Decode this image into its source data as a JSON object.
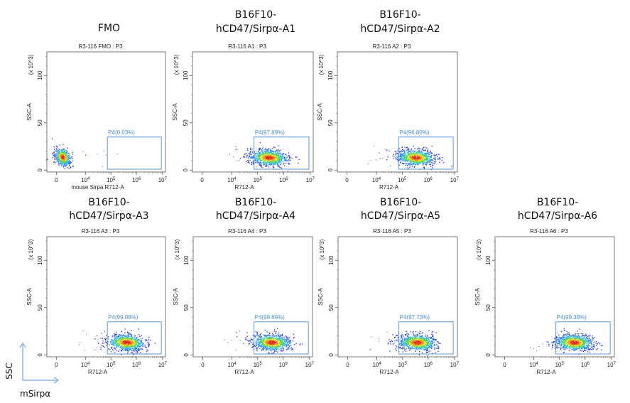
{
  "figure": {
    "corner_y_label": "SSC",
    "corner_x_label": "mSirpα",
    "gate_color": "#4a8fd8"
  },
  "chart_data": [
    {
      "type": "scatter",
      "title_lines": [
        "FMO"
      ],
      "subtitle": "R3-116 FMO : P3",
      "xlabel": "mouse Sirpa R712-A",
      "ylabel": "SSC-A",
      "y_scale_label": "(x 10^3)",
      "x_scale": "biexponential",
      "xticks": [
        "0",
        "10^4",
        "10^5",
        "10^6",
        "10^7"
      ],
      "yticks": [
        0,
        50,
        100
      ],
      "ylim": [
        -2,
        125
      ],
      "gate": {
        "name": "P4",
        "percent": "0.03%",
        "label": "P4(0.03%)",
        "x_range": [
          "7x10^4",
          "7x10^6"
        ],
        "y_range": [
          2,
          35
        ]
      },
      "population_center": {
        "x": "~1x10^3",
        "y": 14
      }
    },
    {
      "type": "scatter",
      "title_lines": [
        "B16F10-",
        "hCD47/Sirpα-A1"
      ],
      "subtitle": "R3-116 A1 : P3",
      "xlabel": "R712-A",
      "ylabel": "SSC-A",
      "y_scale_label": "(x 10^3)",
      "x_scale": "biexponential",
      "xticks": [
        "0",
        "10^4",
        "10^5",
        "10^6",
        "10^7"
      ],
      "yticks": [
        0,
        50,
        100
      ],
      "ylim": [
        -2,
        125
      ],
      "gate": {
        "name": "P4",
        "percent": "97.89%",
        "label": "P4(97.89%)",
        "x_range": [
          "7x10^4",
          "7x10^6"
        ],
        "y_range": [
          2,
          35
        ]
      },
      "population_center": {
        "x": "~2.5x10^5",
        "y": 14
      }
    },
    {
      "type": "scatter",
      "title_lines": [
        "B16F10-",
        "hCD47/Sirpα-A2"
      ],
      "subtitle": "R3-116 A2 : P3",
      "xlabel": "R712-A",
      "ylabel": "SSC-A",
      "y_scale_label": "(x 10^3)",
      "x_scale": "biexponential",
      "xticks": [
        "0",
        "10^4",
        "10^5",
        "10^6",
        "10^7"
      ],
      "yticks": [
        0,
        50,
        100
      ],
      "ylim": [
        -2,
        125
      ],
      "gate": {
        "name": "P4",
        "percent": "96.80%",
        "label": "P4(96.80%)",
        "x_range": [
          "7x10^4",
          "7x10^6"
        ],
        "y_range": [
          2,
          35
        ]
      },
      "population_center": {
        "x": "~3x10^5",
        "y": 15
      }
    },
    {
      "type": "scatter",
      "title_lines": [
        "B16F10-",
        "hCD47/Sirpα-A3"
      ],
      "subtitle": "R3-116 A3 : P3",
      "xlabel": "R712-A",
      "ylabel": "SSC-A",
      "y_scale_label": "(x 10^3)",
      "x_scale": "biexponential",
      "xticks": [
        "0",
        "10^4",
        "10^5",
        "10^6",
        "10^7"
      ],
      "yticks": [
        0,
        50,
        100
      ],
      "ylim": [
        -2,
        125
      ],
      "gate": {
        "name": "P4",
        "percent": "99.08%",
        "label": "P4(99.08%)",
        "x_range": [
          "7x10^4",
          "7x10^6"
        ],
        "y_range": [
          2,
          35
        ]
      },
      "population_center": {
        "x": "~4x10^5",
        "y": 13
      }
    },
    {
      "type": "scatter",
      "title_lines": [
        "B16F10-",
        "hCD47/Sirpα-A4"
      ],
      "subtitle": "R3-116 A4 : P3",
      "xlabel": "R712-A",
      "ylabel": "SSC-A",
      "y_scale_label": "(x 10^3)",
      "x_scale": "biexponential",
      "xticks": [
        "0",
        "10^4",
        "10^5",
        "10^6",
        "10^7"
      ],
      "yticks": [
        0,
        50,
        100
      ],
      "ylim": [
        -2,
        125
      ],
      "gate": {
        "name": "P4",
        "percent": "99.69%",
        "label": "P4(99.69%)",
        "x_range": [
          "7x10^4",
          "7x10^6"
        ],
        "y_range": [
          2,
          35
        ]
      },
      "population_center": {
        "x": "~3.5x10^5",
        "y": 13
      }
    },
    {
      "type": "scatter",
      "title_lines": [
        "B16F10-",
        "hCD47/Sirpα-A5"
      ],
      "subtitle": "R3-116 A5 : P3",
      "xlabel": "R712-A",
      "ylabel": "SSC-A",
      "y_scale_label": "(x 10^3)",
      "x_scale": "biexponential",
      "xticks": [
        "0",
        "10^4",
        "10^5",
        "10^6",
        "10^7"
      ],
      "yticks": [
        0,
        50,
        100
      ],
      "ylim": [
        -2,
        125
      ],
      "gate": {
        "name": "P4",
        "percent": "97.73%",
        "label": "P4(97.73%)",
        "x_range": [
          "7x10^4",
          "7x10^6"
        ],
        "y_range": [
          2,
          35
        ]
      },
      "population_center": {
        "x": "~3x10^5",
        "y": 13
      }
    },
    {
      "type": "scatter",
      "title_lines": [
        "B16F10-",
        "hCD47/Sirpα-A6"
      ],
      "subtitle": "R3-116 A6 : P3",
      "xlabel": "R712-A",
      "ylabel": "SSC-A",
      "y_scale_label": "(x 10^3)",
      "x_scale": "biexponential",
      "xticks": [
        "0",
        "10^4",
        "10^5",
        "10^6",
        "10^7"
      ],
      "yticks": [
        0,
        50,
        100
      ],
      "ylim": [
        -2,
        125
      ],
      "gate": {
        "name": "P4",
        "percent": "99.39%",
        "label": "P4(99.39%)",
        "x_range": [
          "7x10^4",
          "7x10^6"
        ],
        "y_range": [
          2,
          35
        ]
      },
      "population_center": {
        "x": "~3.5x10^5",
        "y": 12
      }
    }
  ]
}
